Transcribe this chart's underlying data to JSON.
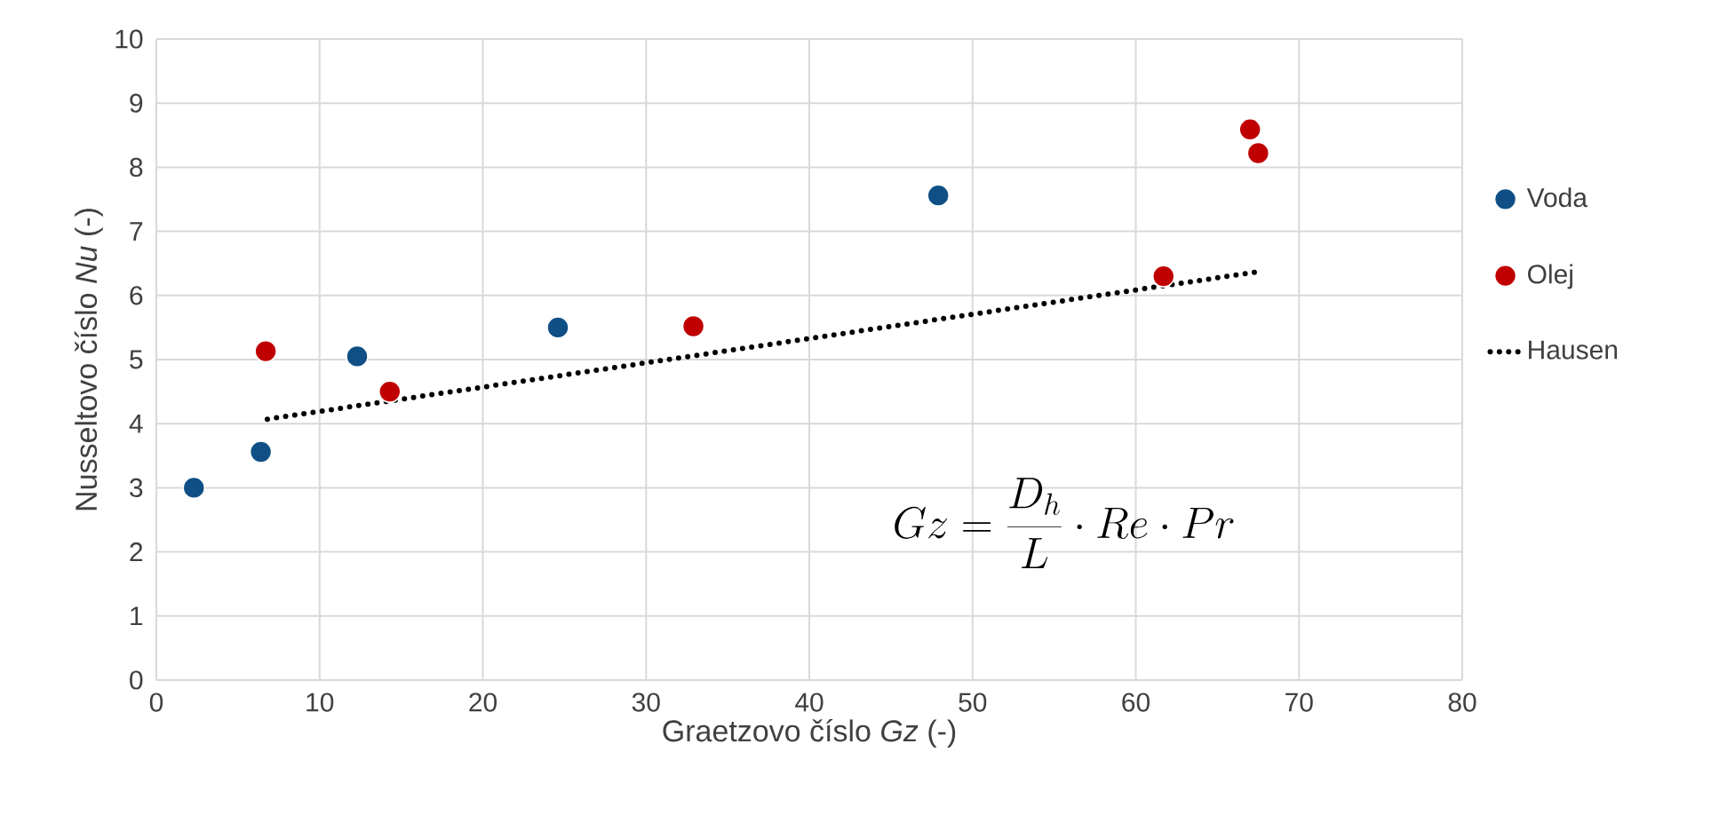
{
  "chart_data": {
    "type": "scatter",
    "xlabel": "Graetzovo číslo *Gz* (-)",
    "ylabel": "Nusseltovo číslo *Nu* (-)",
    "xlim": [
      0,
      80
    ],
    "ylim": [
      0,
      10
    ],
    "xticks": [
      0,
      10,
      20,
      30,
      40,
      50,
      60,
      70,
      80
    ],
    "yticks": [
      0,
      1,
      2,
      3,
      4,
      5,
      6,
      7,
      8,
      9,
      10
    ],
    "grid": true,
    "legend": "right",
    "marker": "circle",
    "series": [
      {
        "name": "Voda",
        "color": "#0f4f85",
        "x": [
          2.3,
          6.4,
          12.3,
          24.6,
          47.9
        ],
        "values": [
          3.0,
          3.56,
          5.05,
          5.5,
          7.56
        ]
      },
      {
        "name": "Olej",
        "color": "#c00000",
        "x": [
          6.7,
          14.3,
          32.9,
          61.7,
          67.0,
          67.5
        ],
        "values": [
          5.13,
          4.5,
          5.52,
          6.3,
          8.59,
          8.22
        ]
      },
      {
        "name": "Hausen",
        "type": "line",
        "color": "#000000",
        "line_style": "dotted",
        "marker": "none",
        "x": [
          6.8,
          67.5
        ],
        "values": [
          4.07,
          6.37
        ]
      }
    ],
    "annotations": [
      "Gz = \\frac{D_h}{L} \\cdot Re \\cdot Pr"
    ]
  }
}
